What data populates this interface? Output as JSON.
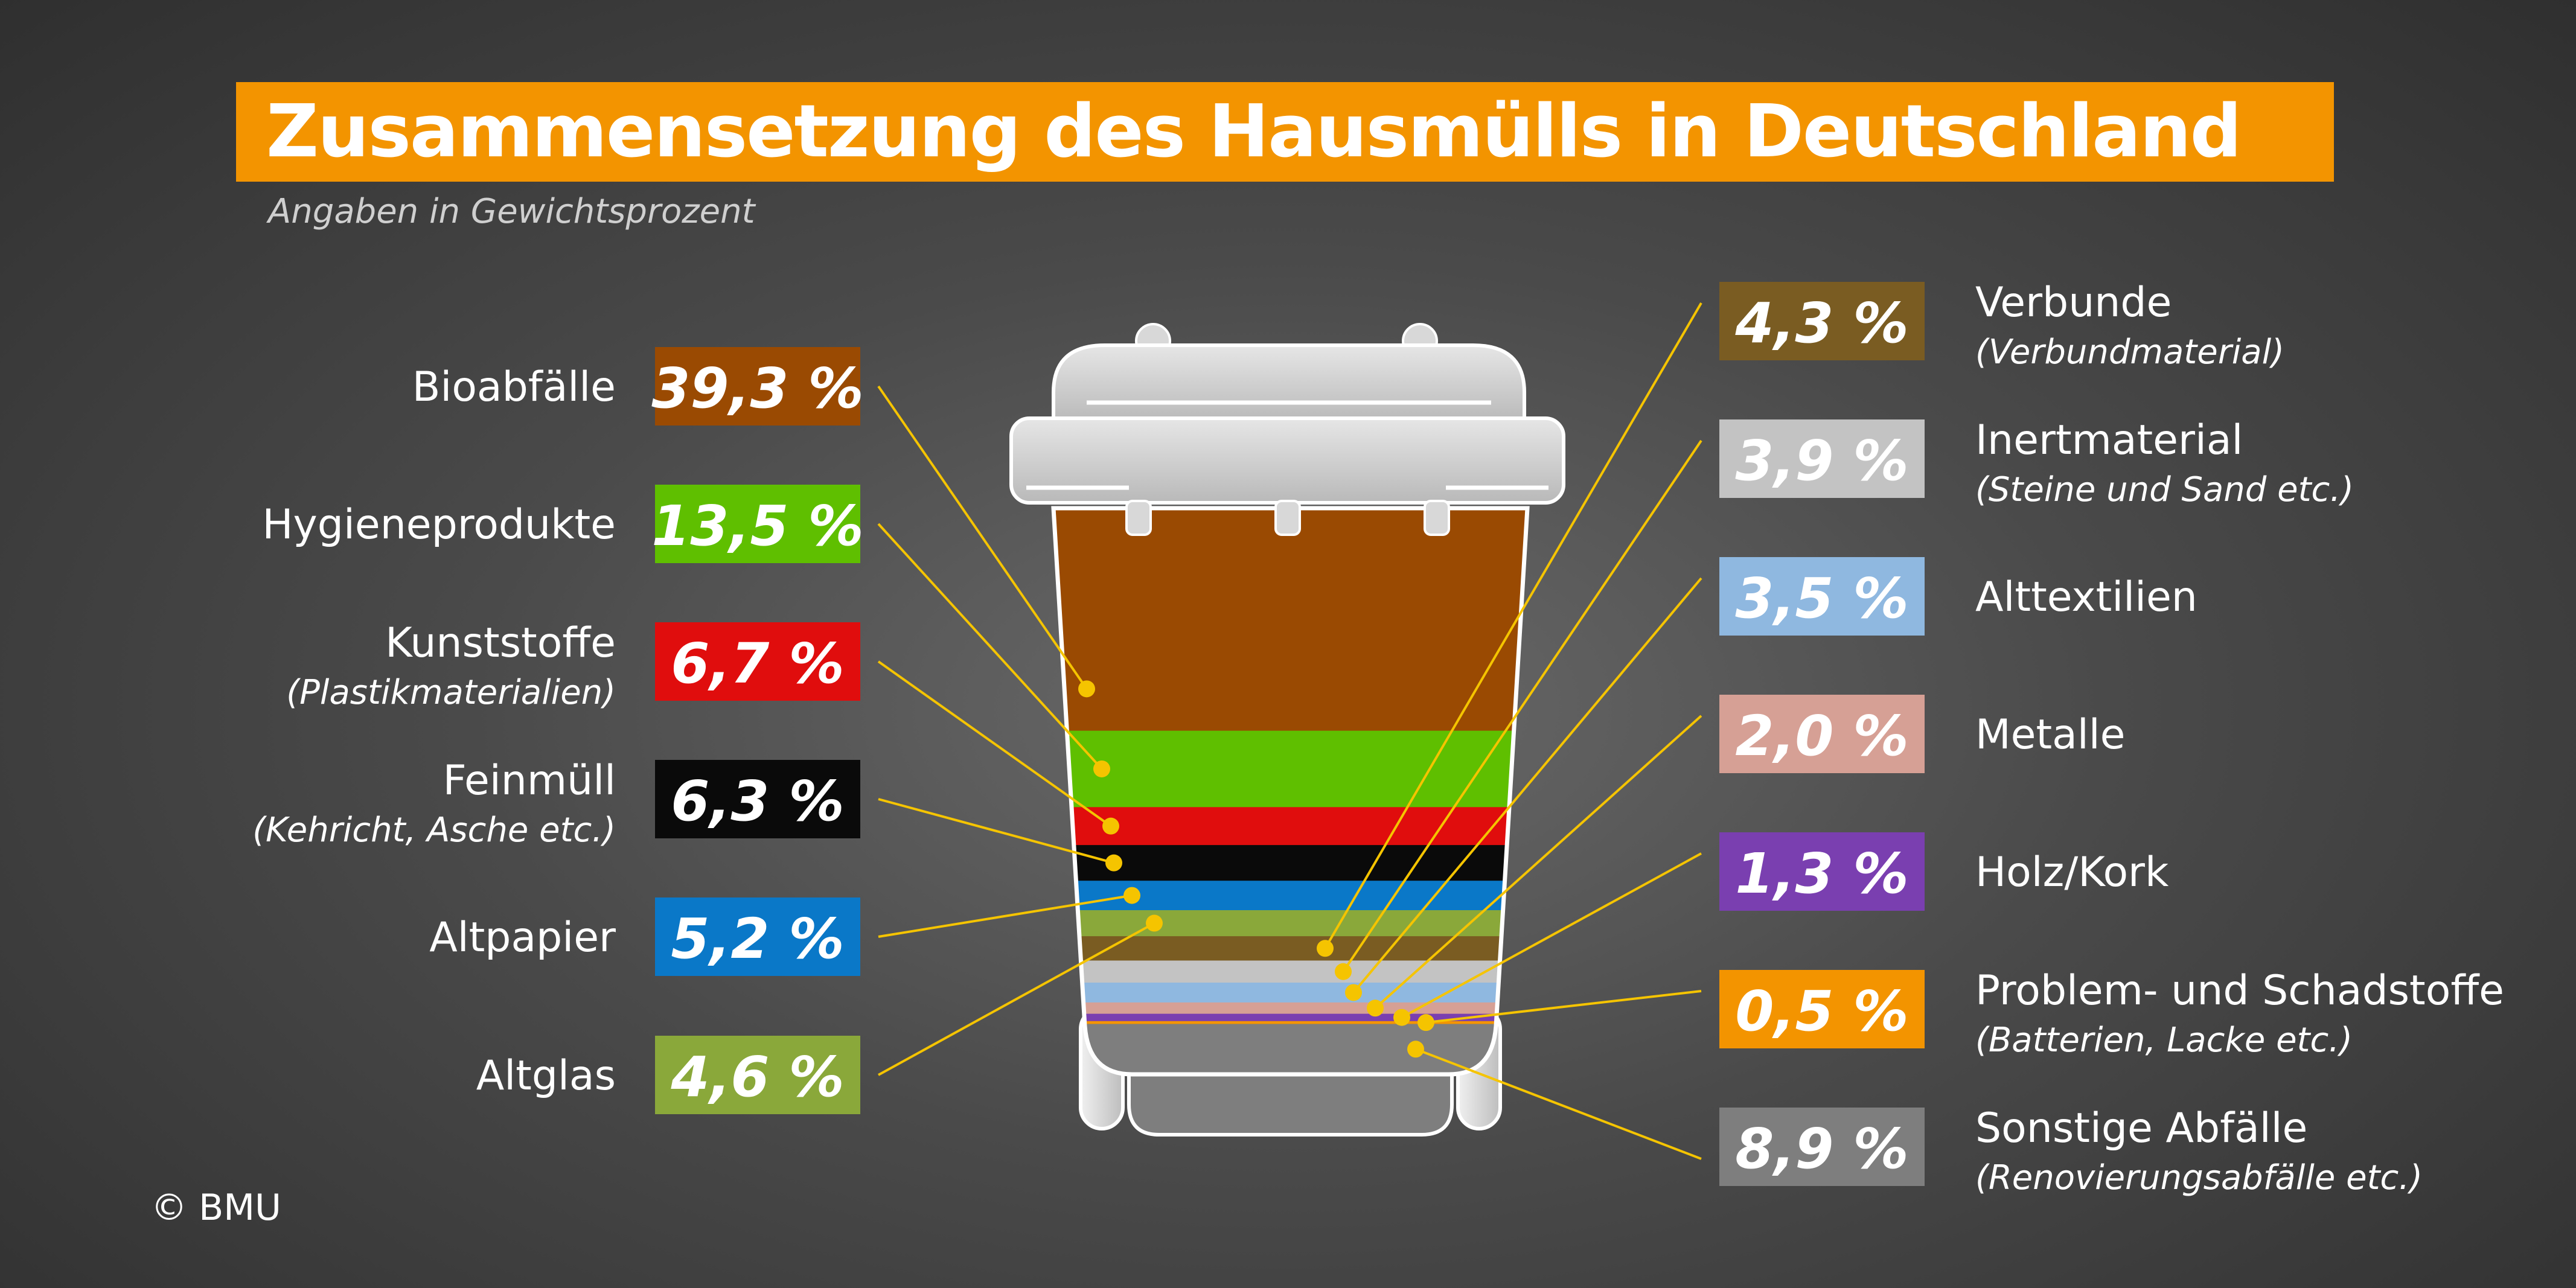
{
  "title": "Zusammensetzung des Hausmülls in Deutschland",
  "subtitle": "Angaben in Gewichtsprozent",
  "copyright": "© BMU",
  "colors": {
    "title_bar": "#f39400",
    "leader_line": "#f5c400",
    "bin_lid": "#cfcfcf"
  },
  "chart_data": {
    "type": "stacked-bar",
    "unit": "%",
    "title": "Zusammensetzung des Hausmülls in Deutschland",
    "subtitle": "Angaben in Gewichtsprozent",
    "series": [
      {
        "name": "Bioabfälle",
        "sub": "",
        "value": 39.3,
        "label": "39,3 %",
        "color": "#9a4a02",
        "side": "left"
      },
      {
        "name": "Hygieneprodukte",
        "sub": "",
        "value": 13.5,
        "label": "13,5 %",
        "color": "#5fbf00",
        "side": "left"
      },
      {
        "name": "Kunststoffe",
        "sub": "(Plastikmaterialien)",
        "value": 6.7,
        "label": "6,7 %",
        "color": "#e00d0d",
        "side": "left"
      },
      {
        "name": "Feinmüll",
        "sub": "(Kehricht, Asche etc.)",
        "value": 6.3,
        "label": "6,3 %",
        "color": "#0a0a0a",
        "side": "left"
      },
      {
        "name": "Altpapier",
        "sub": "",
        "value": 5.2,
        "label": "5,2 %",
        "color": "#0a78c8",
        "side": "left"
      },
      {
        "name": "Altglas",
        "sub": "",
        "value": 4.6,
        "label": "4,6 %",
        "color": "#8aa83a",
        "side": "left"
      },
      {
        "name": "Verbunde",
        "sub": "(Verbundmaterial)",
        "value": 4.3,
        "label": "4,3 %",
        "color": "#7a5c22",
        "side": "right"
      },
      {
        "name": "Inertmaterial",
        "sub": "(Steine und Sand etc.)",
        "value": 3.9,
        "label": "3,9 %",
        "color": "#c3c3c3",
        "side": "right"
      },
      {
        "name": "Alttextilien",
        "sub": "",
        "value": 3.5,
        "label": "3,5 %",
        "color": "#8fb8e0",
        "side": "right"
      },
      {
        "name": "Metalle",
        "sub": "",
        "value": 2.0,
        "label": "2,0 %",
        "color": "#d6a095",
        "side": "right"
      },
      {
        "name": "Holz/Kork",
        "sub": "",
        "value": 1.3,
        "label": "1,3 %",
        "color": "#7a3fb0",
        "side": "right"
      },
      {
        "name": "Problem- und Schadstoffe",
        "sub": "(Batterien, Lacke etc.)",
        "value": 0.5,
        "label": "0,5 %",
        "color": "#f39400",
        "side": "right"
      },
      {
        "name": "Sonstige Abfälle",
        "sub": "(Renovierungsabfälle etc.)",
        "value": 8.9,
        "label": "8,9 %",
        "color": "#7e7e7e",
        "side": "right"
      }
    ]
  }
}
